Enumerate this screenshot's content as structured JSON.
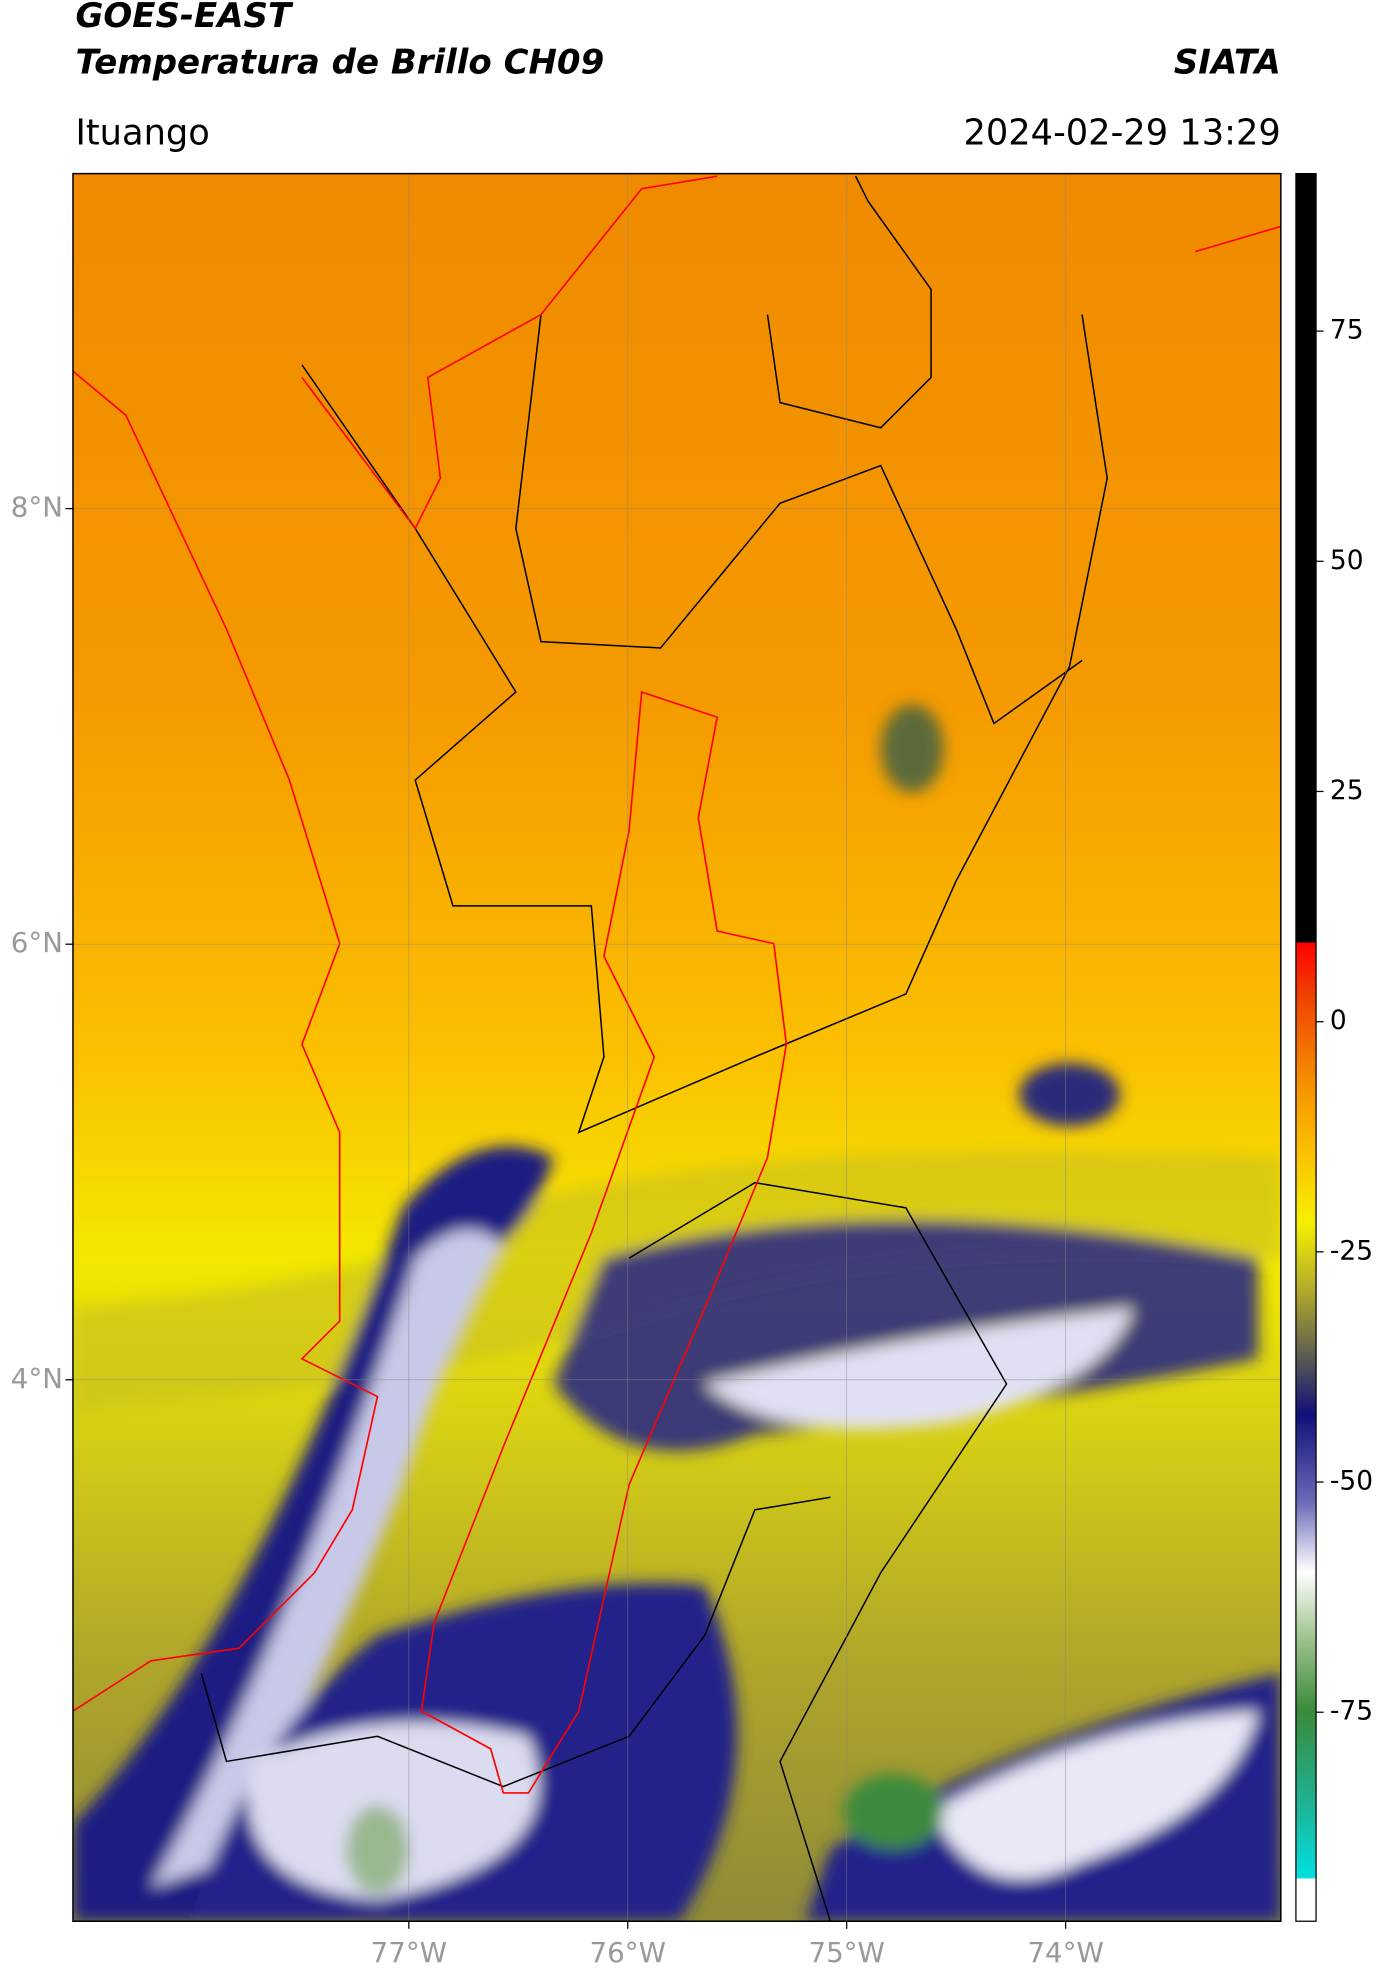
{
  "header": {
    "title": "GOES-EAST",
    "subtitle": "Temperatura de Brillo CH09",
    "source": "SIATA",
    "location": "Ituango",
    "date": "2024-02-29 13:29"
  },
  "map": {
    "xlim": [
      -78.534,
      -73.017
    ],
    "ylim": [
      1.514,
      9.538
    ],
    "xticks": [
      {
        "value": -77,
        "label": "77°W"
      },
      {
        "value": -76,
        "label": "76°W"
      },
      {
        "value": -75,
        "label": "75°W"
      },
      {
        "value": -74,
        "label": "74°W"
      }
    ],
    "yticks": [
      {
        "value": 8,
        "label": "8°N"
      },
      {
        "value": 6,
        "label": "6°N"
      },
      {
        "value": 4,
        "label": "4°N"
      }
    ],
    "grid": true
  },
  "colorbar": {
    "lim": [
      -97.7,
      92.1
    ],
    "ticks": [
      75,
      50,
      25,
      0,
      -25,
      -50,
      -75
    ]
  }
}
